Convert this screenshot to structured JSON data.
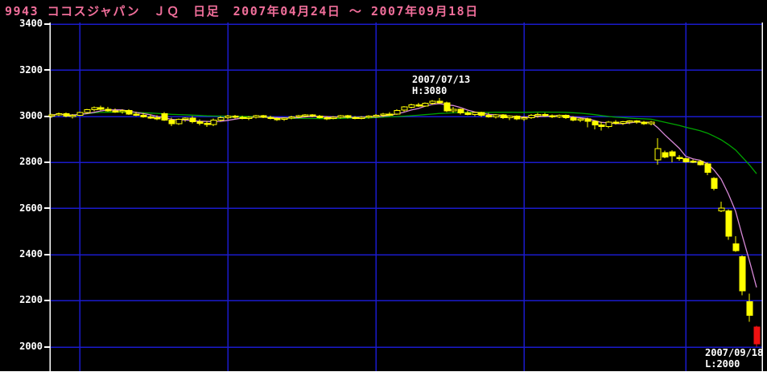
{
  "header": {
    "title": "9943 ココスジャパン　ＪＱ　日足　2007年04月24日 ～ 2007年09月18日"
  },
  "colors": {
    "background": "#000000",
    "title_text": "#F06E9A",
    "grid": "#1A1ACC",
    "axis": "#FFFFFF",
    "label_text": "#FFFFFF",
    "candle": "#FFFF00",
    "last_candle": "#EE1111",
    "ma_short": "#D688D6",
    "ma_long": "#00A400",
    "bottom_strip": "#FFFFFF"
  },
  "annotations": {
    "high": {
      "line1": "2007/07/13",
      "line2": "H:3080"
    },
    "low": {
      "line1": "2007/09/18",
      "line2": "L:2000"
    }
  },
  "chart_data": {
    "type": "candlestick",
    "title": "9943 ココスジャパン JQ 日足 2007/04/24 - 2007/09/18",
    "symbol": "9943",
    "name": "ココスジャパン",
    "market": "ＪＱ",
    "interval": "日足",
    "date_range": [
      "2007/04/24",
      "2007/09/18"
    ],
    "ylim": [
      1894,
      3400
    ],
    "y_ticks": [
      3400,
      3200,
      3000,
      2800,
      2600,
      2400,
      2200,
      2000
    ],
    "y_tick_labels": [
      "3400",
      "3200",
      "3000",
      "2800",
      "2600",
      "2400",
      "2200",
      "2000"
    ],
    "grid": true,
    "month_start_indices": [
      4,
      25,
      46,
      67,
      90
    ],
    "high_point": {
      "date": "2007/07/13",
      "value": 3080,
      "index": 55
    },
    "low_point": {
      "date": "2007/09/18",
      "value": 2000,
      "index": 100
    },
    "series": [
      {
        "name": "short moving average (5-day)",
        "type": "line",
        "period": 5,
        "color": "#D688D6"
      },
      {
        "name": "long moving average (25-day)",
        "type": "line",
        "period": 25,
        "color": "#00A400"
      }
    ],
    "last_candle_red": true,
    "candles_format": [
      "date",
      "open",
      "high",
      "low",
      "close"
    ],
    "candles": [
      [
        "04/24",
        3000,
        3012,
        2992,
        3006
      ],
      [
        "04/25",
        3006,
        3016,
        3000,
        3012
      ],
      [
        "04/26",
        3012,
        3016,
        2996,
        3000
      ],
      [
        "04/27",
        3000,
        3010,
        2990,
        3004
      ],
      [
        "05/01",
        3004,
        3020,
        3000,
        3016
      ],
      [
        "05/02",
        3016,
        3032,
        3012,
        3028
      ],
      [
        "05/07",
        3028,
        3042,
        3022,
        3038
      ],
      [
        "05/08",
        3038,
        3046,
        3026,
        3030
      ],
      [
        "05/09",
        3030,
        3040,
        3020,
        3024
      ],
      [
        "05/10",
        3024,
        3034,
        3014,
        3020
      ],
      [
        "05/11",
        3020,
        3030,
        3012,
        3026
      ],
      [
        "05/14",
        3026,
        3030,
        3006,
        3010
      ],
      [
        "05/15",
        3010,
        3020,
        3000,
        3004
      ],
      [
        "05/16",
        3004,
        3014,
        2994,
        2998
      ],
      [
        "05/17",
        2998,
        3008,
        2988,
        2994
      ],
      [
        "05/18",
        2994,
        3004,
        2984,
        2990
      ],
      [
        "05/21",
        3012,
        3018,
        2980,
        2984
      ],
      [
        "05/22",
        2984,
        2994,
        2958,
        2968
      ],
      [
        "05/23",
        2968,
        2990,
        2962,
        2986
      ],
      [
        "05/24",
        2986,
        2996,
        2976,
        2992
      ],
      [
        "05/25",
        2992,
        3000,
        2970,
        2976
      ],
      [
        "05/28",
        2976,
        2986,
        2960,
        2970
      ],
      [
        "05/29",
        2970,
        2980,
        2954,
        2964
      ],
      [
        "05/30",
        2964,
        2990,
        2958,
        2984
      ],
      [
        "05/31",
        2984,
        3000,
        2978,
        2994
      ],
      [
        "06/01",
        2994,
        3006,
        2986,
        3000
      ],
      [
        "06/04",
        3000,
        3006,
        2990,
        2996
      ],
      [
        "06/05",
        2996,
        3002,
        2986,
        2990
      ],
      [
        "06/06",
        2990,
        3000,
        2984,
        2996
      ],
      [
        "06/07",
        2996,
        3006,
        2990,
        3002
      ],
      [
        "06/08",
        3002,
        3006,
        2992,
        2996
      ],
      [
        "06/11",
        2996,
        3002,
        2986,
        2990
      ],
      [
        "06/12",
        2990,
        2996,
        2980,
        2986
      ],
      [
        "06/13",
        2986,
        2996,
        2980,
        2992
      ],
      [
        "06/14",
        2992,
        3002,
        2986,
        2998
      ],
      [
        "06/15",
        2998,
        3006,
        2992,
        3002
      ],
      [
        "06/18",
        3002,
        3010,
        2996,
        3006
      ],
      [
        "06/19",
        3006,
        3010,
        2996,
        3000
      ],
      [
        "06/20",
        3000,
        3006,
        2990,
        2994
      ],
      [
        "06/21",
        2994,
        3000,
        2984,
        2990
      ],
      [
        "06/22",
        2990,
        3000,
        2986,
        2996
      ],
      [
        "06/25",
        2996,
        3006,
        2990,
        3002
      ],
      [
        "06/26",
        3002,
        3006,
        2990,
        2996
      ],
      [
        "06/27",
        2996,
        3000,
        2986,
        2990
      ],
      [
        "06/28",
        2990,
        3000,
        2986,
        2996
      ],
      [
        "06/29",
        2996,
        3004,
        2990,
        3000
      ],
      [
        "07/02",
        3000,
        3010,
        2994,
        3004
      ],
      [
        "07/03",
        3004,
        3014,
        2998,
        3010
      ],
      [
        "07/04",
        3010,
        3018,
        3000,
        3010
      ],
      [
        "07/05",
        3010,
        3030,
        3006,
        3026
      ],
      [
        "07/06",
        3026,
        3044,
        3020,
        3040
      ],
      [
        "07/09",
        3040,
        3054,
        3034,
        3050
      ],
      [
        "07/10",
        3050,
        3058,
        3040,
        3044
      ],
      [
        "07/11",
        3044,
        3060,
        3040,
        3056
      ],
      [
        "07/12",
        3056,
        3070,
        3050,
        3066
      ],
      [
        "07/13",
        3066,
        3080,
        3054,
        3058
      ],
      [
        "07/17",
        3058,
        3064,
        3018,
        3024
      ],
      [
        "07/18",
        3024,
        3040,
        3014,
        3030
      ],
      [
        "07/19",
        3030,
        3034,
        3008,
        3014
      ],
      [
        "07/20",
        3014,
        3024,
        3004,
        3008
      ],
      [
        "07/23",
        3008,
        3020,
        3000,
        3016
      ],
      [
        "07/24",
        3016,
        3020,
        2998,
        3004
      ],
      [
        "07/25",
        3004,
        3014,
        2994,
        2998
      ],
      [
        "07/26",
        2998,
        3010,
        2990,
        3006
      ],
      [
        "07/27",
        3006,
        3010,
        2988,
        2994
      ],
      [
        "07/30",
        2994,
        3004,
        2984,
        3000
      ],
      [
        "07/31",
        3000,
        3004,
        2984,
        2988
      ],
      [
        "08/01",
        2988,
        3000,
        2980,
        2994
      ],
      [
        "08/02",
        2994,
        3010,
        2988,
        3004
      ],
      [
        "08/03",
        3004,
        3014,
        2994,
        3008
      ],
      [
        "08/06",
        3008,
        3014,
        2998,
        3002
      ],
      [
        "08/07",
        3002,
        3008,
        2992,
        2998
      ],
      [
        "08/08",
        2998,
        3008,
        2992,
        3004
      ],
      [
        "08/09",
        3004,
        3008,
        2988,
        2994
      ],
      [
        "08/10",
        2994,
        3000,
        2978,
        2984
      ],
      [
        "08/13",
        2984,
        2994,
        2974,
        2988
      ],
      [
        "08/14",
        2988,
        2994,
        2952,
        2978
      ],
      [
        "08/15",
        2978,
        2984,
        2944,
        2962
      ],
      [
        "08/16",
        2962,
        2976,
        2938,
        2956
      ],
      [
        "08/17",
        2956,
        2980,
        2948,
        2974
      ],
      [
        "08/20",
        2974,
        2984,
        2964,
        2970
      ],
      [
        "08/21",
        2970,
        2980,
        2962,
        2976
      ],
      [
        "08/22",
        2976,
        2984,
        2966,
        2980
      ],
      [
        "08/23",
        2980,
        2984,
        2968,
        2974
      ],
      [
        "08/24",
        2974,
        2980,
        2962,
        2968
      ],
      [
        "08/27",
        2968,
        2980,
        2960,
        2974
      ],
      [
        "08/28",
        2810,
        2905,
        2790,
        2860
      ],
      [
        "08/29",
        2842,
        2850,
        2818,
        2822
      ],
      [
        "08/30",
        2846,
        2852,
        2800,
        2828
      ],
      [
        "08/31",
        2822,
        2832,
        2808,
        2820
      ],
      [
        "09/03",
        2816,
        2822,
        2798,
        2802
      ],
      [
        "09/04",
        2806,
        2812,
        2796,
        2804
      ],
      [
        "09/05",
        2804,
        2810,
        2786,
        2790
      ],
      [
        "09/06",
        2794,
        2800,
        2744,
        2756
      ],
      [
        "09/07",
        2730,
        2736,
        2678,
        2686
      ],
      [
        "09/10",
        2590,
        2630,
        2584,
        2602
      ],
      [
        "09/11",
        2590,
        2596,
        2464,
        2480
      ],
      [
        "09/12",
        2446,
        2480,
        2412,
        2416
      ],
      [
        "09/13",
        2390,
        2396,
        2224,
        2242
      ],
      [
        "09/14",
        2196,
        2230,
        2108,
        2136
      ],
      [
        "09/18",
        2086,
        2090,
        2000,
        2012
      ]
    ]
  }
}
